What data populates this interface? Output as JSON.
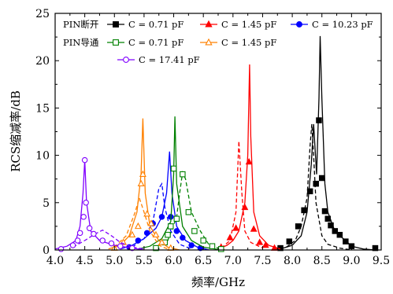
{
  "chart_data": {
    "type": "line",
    "xlabel": "频率/GHz",
    "ylabel": "RCS缩减率/dB",
    "xlim": [
      4.0,
      9.5
    ],
    "ylim": [
      0,
      25
    ],
    "xticks": [
      "4.0",
      "4.5",
      "5.0",
      "5.5",
      "6.0",
      "6.5",
      "7.0",
      "7.5",
      "8.0",
      "8.5",
      "9.0",
      "9.5"
    ],
    "yticks": [
      "0",
      "5",
      "10",
      "15",
      "20",
      "25"
    ],
    "legend": {
      "placement": "top",
      "group_off": "PIN断开",
      "group_on": "PIN导通"
    },
    "series": [
      {
        "name": "C = 0.71 pF",
        "group": "PIN断开",
        "color": "#000000",
        "marker": "square-filled",
        "measured_style": "dashed",
        "curve": [
          [
            7.8,
            0.1
          ],
          [
            8.0,
            0.5
          ],
          [
            8.15,
            1.5
          ],
          [
            8.25,
            4.0
          ],
          [
            8.32,
            9.0
          ],
          [
            8.36,
            13.3
          ],
          [
            8.41,
            8.0
          ],
          [
            8.45,
            16.0
          ],
          [
            8.47,
            22.6
          ],
          [
            8.5,
            16.0
          ],
          [
            8.55,
            7.0
          ],
          [
            8.6,
            4.0
          ],
          [
            8.7,
            2.3
          ],
          [
            8.8,
            1.5
          ],
          [
            8.9,
            1.0
          ],
          [
            9.0,
            0.4
          ],
          [
            9.2,
            0.1
          ],
          [
            9.4,
            0
          ]
        ],
        "measured": [
          [
            7.9,
            0.3
          ],
          [
            8.05,
            1.0
          ],
          [
            8.15,
            2.5
          ],
          [
            8.25,
            5.5
          ],
          [
            8.3,
            11.0
          ],
          [
            8.33,
            13.3
          ],
          [
            8.36,
            10.0
          ],
          [
            8.4,
            5.0
          ],
          [
            8.5,
            1.5
          ],
          [
            8.6,
            0.6
          ],
          [
            8.8,
            0.2
          ],
          [
            9.0,
            0
          ]
        ],
        "markers": [
          [
            7.8,
            0.2
          ],
          [
            7.95,
            0.9
          ],
          [
            8.1,
            2.5
          ],
          [
            8.2,
            4.2
          ],
          [
            8.3,
            6.2
          ],
          [
            8.4,
            7.0
          ],
          [
            8.45,
            13.7
          ],
          [
            8.5,
            7.6
          ],
          [
            8.55,
            4.1
          ],
          [
            8.6,
            3.3
          ],
          [
            8.65,
            2.6
          ],
          [
            8.72,
            2.0
          ],
          [
            8.8,
            1.6
          ],
          [
            8.9,
            0.9
          ],
          [
            9.0,
            0.4
          ],
          [
            9.4,
            0.2
          ]
        ]
      },
      {
        "name": "C = 1.45 pF",
        "group": "PIN断开",
        "color": "#ff0000",
        "marker": "triangle-filled",
        "measured_style": "dashed",
        "curve": [
          [
            6.75,
            0.1
          ],
          [
            6.9,
            0.5
          ],
          [
            7.0,
            1.0
          ],
          [
            7.1,
            2.0
          ],
          [
            7.2,
            5.0
          ],
          [
            7.25,
            10.0
          ],
          [
            7.28,
            19.6
          ],
          [
            7.3,
            12.0
          ],
          [
            7.35,
            4.0
          ],
          [
            7.45,
            1.5
          ],
          [
            7.6,
            0.5
          ],
          [
            7.8,
            0.1
          ]
        ],
        "measured": [
          [
            6.8,
            0.2
          ],
          [
            6.95,
            1.0
          ],
          [
            7.05,
            4.0
          ],
          [
            7.1,
            11.5
          ],
          [
            7.15,
            6.0
          ],
          [
            7.2,
            2.0
          ],
          [
            7.3,
            0.8
          ],
          [
            7.5,
            0.2
          ]
        ],
        "markers": [
          [
            6.8,
            0.3
          ],
          [
            6.95,
            1.3
          ],
          [
            7.05,
            2.3
          ],
          [
            7.2,
            4.5
          ],
          [
            7.27,
            9.3
          ],
          [
            7.35,
            2.2
          ],
          [
            7.45,
            0.8
          ],
          [
            7.55,
            0.5
          ],
          [
            7.7,
            0.2
          ]
        ]
      },
      {
        "name": "C = 10.23 pF",
        "group": "PIN断开",
        "color": "#0000ff",
        "marker": "circle-filled",
        "measured_style": "dashed",
        "curve": [
          [
            5.1,
            0.1
          ],
          [
            5.3,
            0.5
          ],
          [
            5.5,
            1.2
          ],
          [
            5.7,
            2.3
          ],
          [
            5.8,
            3.5
          ],
          [
            5.88,
            6.0
          ],
          [
            5.93,
            10.4
          ],
          [
            5.97,
            6.0
          ],
          [
            6.05,
            2.5
          ],
          [
            6.2,
            1.0
          ],
          [
            6.4,
            0.3
          ],
          [
            6.6,
            0
          ]
        ],
        "measured": [
          [
            5.3,
            0.3
          ],
          [
            5.5,
            1.2
          ],
          [
            5.65,
            3.0
          ],
          [
            5.75,
            6.5
          ],
          [
            5.8,
            7.0
          ],
          [
            5.85,
            4.5
          ],
          [
            5.95,
            2.0
          ],
          [
            6.1,
            0.6
          ],
          [
            6.3,
            0.1
          ]
        ],
        "markers": [
          [
            5.25,
            0.3
          ],
          [
            5.4,
            1.0
          ],
          [
            5.55,
            1.8
          ],
          [
            5.65,
            2.8
          ],
          [
            5.8,
            3.5
          ],
          [
            5.95,
            3.5
          ],
          [
            6.05,
            2.0
          ],
          [
            6.15,
            1.3
          ],
          [
            6.3,
            0.5
          ],
          [
            6.45,
            0.2
          ]
        ]
      },
      {
        "name": "C = 0.71 pF",
        "group": "PIN导通",
        "color": "#008000",
        "marker": "square-open",
        "measured_style": "dashed",
        "curve": [
          [
            5.4,
            0.1
          ],
          [
            5.6,
            0.4
          ],
          [
            5.8,
            1.2
          ],
          [
            5.95,
            3.0
          ],
          [
            6.0,
            8.0
          ],
          [
            6.02,
            14.1
          ],
          [
            6.05,
            7.0
          ],
          [
            6.15,
            2.5
          ],
          [
            6.3,
            1.0
          ],
          [
            6.5,
            0.3
          ],
          [
            6.8,
            0
          ]
        ],
        "measured": [
          [
            5.7,
            0.3
          ],
          [
            5.9,
            1.0
          ],
          [
            6.05,
            3.5
          ],
          [
            6.1,
            6.0
          ],
          [
            6.15,
            8.2
          ],
          [
            6.2,
            7.5
          ],
          [
            6.3,
            4.0
          ],
          [
            6.45,
            2.0
          ],
          [
            6.6,
            0.5
          ],
          [
            6.8,
            0.1
          ]
        ],
        "markers": [
          [
            5.7,
            0.2
          ],
          [
            5.85,
            0.8
          ],
          [
            5.9,
            1.6
          ],
          [
            5.95,
            2.5
          ],
          [
            6.0,
            8.6
          ],
          [
            6.05,
            3.3
          ],
          [
            6.15,
            8.0
          ],
          [
            6.25,
            4.0
          ],
          [
            6.35,
            2.0
          ],
          [
            6.5,
            1.0
          ],
          [
            6.65,
            0.4
          ],
          [
            6.8,
            0.1
          ]
        ]
      },
      {
        "name": "C = 1.45 pF",
        "group": "PIN导通",
        "color": "#ff8000",
        "marker": "triangle-open",
        "measured_style": "dashed",
        "curve": [
          [
            4.9,
            0.1
          ],
          [
            5.1,
            0.5
          ],
          [
            5.25,
            1.5
          ],
          [
            5.38,
            4.0
          ],
          [
            5.45,
            8.0
          ],
          [
            5.48,
            13.9
          ],
          [
            5.52,
            6.0
          ],
          [
            5.6,
            2.5
          ],
          [
            5.75,
            1.0
          ],
          [
            5.9,
            0.3
          ],
          [
            6.1,
            0
          ]
        ],
        "measured": [
          [
            5.0,
            0.3
          ],
          [
            5.2,
            1.5
          ],
          [
            5.35,
            4.0
          ],
          [
            5.42,
            5.5
          ],
          [
            5.5,
            4.0
          ],
          [
            5.6,
            2.0
          ],
          [
            5.75,
            0.5
          ],
          [
            5.9,
            0.1
          ]
        ],
        "markers": [
          [
            5.0,
            0.2
          ],
          [
            5.15,
            0.8
          ],
          [
            5.3,
            1.6
          ],
          [
            5.4,
            2.5
          ],
          [
            5.45,
            7.0
          ],
          [
            5.48,
            8.0
          ],
          [
            5.55,
            3.8
          ],
          [
            5.62,
            2.8
          ],
          [
            5.7,
            1.6
          ],
          [
            5.8,
            0.8
          ],
          [
            5.95,
            0.2
          ]
        ]
      },
      {
        "name": "C = 17.41 pF",
        "group": "PIN导通",
        "color": "#8000ff",
        "marker": "circle-open",
        "measured_style": "dashed",
        "curve": [
          [
            4.0,
            0.1
          ],
          [
            4.2,
            0.4
          ],
          [
            4.35,
            1.0
          ],
          [
            4.42,
            2.5
          ],
          [
            4.47,
            6.0
          ],
          [
            4.5,
            9.5
          ],
          [
            4.53,
            5.0
          ],
          [
            4.6,
            2.0
          ],
          [
            4.75,
            1.0
          ],
          [
            5.0,
            0.5
          ],
          [
            5.3,
            0.2
          ],
          [
            5.5,
            0
          ]
        ],
        "measured": [
          [
            4.3,
            0.3
          ],
          [
            4.5,
            1.0
          ],
          [
            4.65,
            1.6
          ],
          [
            4.8,
            2.1
          ],
          [
            4.95,
            1.5
          ],
          [
            5.1,
            0.8
          ],
          [
            5.3,
            0.3
          ],
          [
            5.5,
            0.1
          ]
        ],
        "markers": [
          [
            4.1,
            0.1
          ],
          [
            4.3,
            0.5
          ],
          [
            4.38,
            1.0
          ],
          [
            4.42,
            1.8
          ],
          [
            4.48,
            3.5
          ],
          [
            4.5,
            9.5
          ],
          [
            4.52,
            5.0
          ],
          [
            4.58,
            2.3
          ],
          [
            4.65,
            1.7
          ],
          [
            4.8,
            1.0
          ],
          [
            4.95,
            0.7
          ],
          [
            5.1,
            0.4
          ],
          [
            5.3,
            0.2
          ]
        ]
      }
    ]
  }
}
